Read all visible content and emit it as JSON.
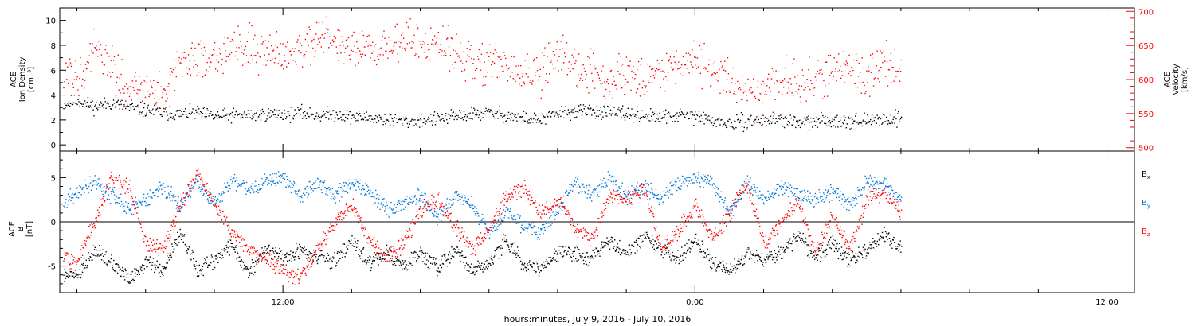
{
  "figure": {
    "xlabel": "hours:minutes, July  9, 2016 - July 10, 2016",
    "x_ticks": [
      "12:00",
      "0:00",
      "12:00"
    ]
  },
  "chart_data": [
    {
      "type": "scatter",
      "panel": "plasma",
      "left_label_lines": [
        "ACE",
        "Ion Density",
        "[cm⁻³]"
      ],
      "right_label_lines": [
        "ACE",
        "Velocity",
        "[km/s]"
      ],
      "x_range_hours": [
        -6.5,
        24.8
      ],
      "yleft_lim": [
        -0.5,
        11
      ],
      "yleft_ticks": [
        "0",
        "2",
        "4",
        "6",
        "8",
        "10"
      ],
      "yright_lim": [
        495,
        705
      ],
      "yright_ticks": [
        "500",
        "550",
        "600",
        "650",
        "700"
      ],
      "grid": false,
      "series": [
        {
          "axis": "left",
          "color": "#000000",
          "x": [
            -6.4,
            -6,
            -5.5,
            -5,
            -4.5,
            -4,
            -3.5,
            -3,
            -2.5,
            -2,
            -1.5,
            -1,
            -0.5,
            0,
            0.5,
            1,
            1.5,
            2,
            2.5,
            3,
            3.5,
            4,
            4.5,
            5,
            5.5,
            6,
            6.5,
            7,
            7.5,
            8,
            8.5,
            9,
            9.5,
            10,
            10.5,
            11,
            11.5,
            12,
            12.5,
            13,
            13.5,
            14,
            14.5,
            15,
            15.5,
            16,
            16.5,
            17,
            17.5,
            18
          ],
          "y": [
            3.3,
            3.6,
            3.1,
            3.4,
            3.0,
            2.8,
            2.6,
            2.5,
            2.6,
            2.3,
            2.4,
            2.4,
            2.5,
            2.5,
            2.6,
            2.4,
            2.5,
            2.3,
            2.2,
            2.1,
            1.9,
            2.0,
            2.1,
            2.3,
            2.5,
            2.6,
            2.4,
            2.2,
            2.0,
            2.6,
            2.7,
            2.8,
            2.6,
            2.5,
            2.4,
            2.2,
            2.4,
            2.3,
            2.0,
            1.7,
            1.9,
            2.0,
            2.1,
            1.8,
            1.9,
            2.0,
            2.0,
            1.9,
            2.1,
            2.2
          ]
        },
        {
          "axis": "right",
          "color": "#ff0000",
          "x": [
            -6.4,
            -6,
            -5.5,
            -5,
            -4.5,
            -4,
            -3.5,
            -3,
            -2.5,
            -2,
            -1.5,
            -1,
            -0.5,
            0,
            0.5,
            1,
            1.5,
            2,
            2.5,
            3,
            3.5,
            4,
            4.5,
            5,
            5.5,
            6,
            6.5,
            7,
            7.5,
            8,
            8.5,
            9,
            9.5,
            10,
            10.5,
            11,
            11.5,
            12,
            12.5,
            13,
            13.5,
            14,
            14.5,
            15,
            15.5,
            16,
            16.5,
            17,
            17.5,
            18
          ],
          "y": [
            600,
            610,
            640,
            620,
            590,
            585,
            580,
            625,
            630,
            640,
            645,
            650,
            645,
            640,
            650,
            660,
            655,
            645,
            640,
            650,
            660,
            655,
            650,
            640,
            630,
            625,
            615,
            606,
            610,
            640,
            620,
            610,
            600,
            610,
            600,
            615,
            625,
            630,
            610,
            596,
            590,
            580,
            600,
            595,
            600,
            610,
            620,
            605,
            630,
            615
          ]
        }
      ]
    },
    {
      "type": "scatter",
      "panel": "magnetic",
      "left_label_lines": [
        "ACE",
        "B",
        "[nT]"
      ],
      "x_range_hours": [
        -6.5,
        24.8
      ],
      "y_lim": [
        -8,
        8
      ],
      "y_ticks": [
        "-5",
        "0",
        "5"
      ],
      "zero_line": 0,
      "grid": false,
      "series": [
        {
          "name": "Bx",
          "color": "#000000",
          "x": [
            -6.4,
            -6,
            -5.5,
            -5,
            -4.5,
            -4,
            -3.5,
            -3,
            -2.5,
            -2,
            -1.5,
            -1,
            -0.5,
            0,
            0.5,
            1,
            1.5,
            2,
            2.5,
            3,
            3.5,
            4,
            4.5,
            5,
            5.5,
            6,
            6.5,
            7,
            7.5,
            8,
            8.5,
            9,
            9.5,
            10,
            10.5,
            11,
            11.5,
            12,
            12.5,
            13,
            13.5,
            14,
            14.5,
            15,
            15.5,
            16,
            16.5,
            17,
            17.5,
            18
          ],
          "y": [
            -6,
            -5.8,
            -3,
            -4.5,
            -6.5,
            -4.5,
            -5.5,
            -1,
            -5.5,
            -4.2,
            -2.5,
            -5.8,
            -3,
            -4,
            -3.2,
            -3.8,
            -4.5,
            -2,
            -4.6,
            -3.2,
            -5,
            -3.5,
            -5.2,
            -3,
            -5.4,
            -4.5,
            -2,
            -4.8,
            -5.3,
            -3.5,
            -3.5,
            -4,
            -2,
            -3.5,
            -1.5,
            -3,
            -4,
            -2,
            -4.5,
            -5.5,
            -3.5,
            -4,
            -3.5,
            -1.5,
            -4,
            -2.5,
            -4.5,
            -3,
            -1.5,
            -3
          ]
        },
        {
          "name": "By",
          "color": "#0078dc",
          "x": [
            -6.4,
            -6,
            -5.5,
            -5,
            -4.5,
            -4,
            -3.5,
            -3,
            -2.5,
            -2,
            -1.5,
            -1,
            -0.5,
            0,
            0.5,
            1,
            1.5,
            2,
            2.5,
            3,
            3.5,
            4,
            4.5,
            5,
            5.5,
            6,
            6.5,
            7,
            7.5,
            8,
            8.5,
            9,
            9.5,
            10,
            10.5,
            11,
            11.5,
            12,
            12.5,
            13,
            13.5,
            14,
            14.5,
            15,
            15.5,
            16,
            16.5,
            17,
            17.5,
            18
          ],
          "y": [
            2,
            3.5,
            4.5,
            3,
            1.5,
            2.5,
            4,
            2,
            4.5,
            2,
            5,
            3.5,
            4.5,
            5,
            3,
            4.5,
            3,
            4.5,
            3.5,
            1.5,
            2,
            3,
            0.5,
            3,
            2,
            -1.5,
            1.5,
            -0.5,
            -1,
            1.5,
            4.5,
            3,
            5,
            3,
            4,
            2.5,
            4.5,
            5,
            4.5,
            1,
            4.5,
            2.5,
            4,
            3,
            2.5,
            3.5,
            2,
            4.5,
            4.5,
            2.5
          ]
        },
        {
          "name": "Bz",
          "color": "#ff0000",
          "x": [
            -6.4,
            -6,
            -5.5,
            -5,
            -4.5,
            -4,
            -3.5,
            -3,
            -2.5,
            -2,
            -1.5,
            -1,
            -0.5,
            0,
            0.5,
            1,
            1.5,
            2,
            2.5,
            3,
            3.5,
            4,
            4.5,
            5,
            5.5,
            6,
            6.5,
            7,
            7.5,
            8,
            8.5,
            9,
            9.5,
            10,
            10.5,
            11,
            11.5,
            12,
            12.5,
            13,
            13.5,
            14,
            14.5,
            15,
            15.5,
            16,
            16.5,
            17,
            17.5,
            18
          ],
          "y": [
            -4,
            -4.5,
            0,
            5,
            4,
            -2.5,
            -3,
            2,
            5.5,
            2,
            -1,
            -3,
            -4,
            -5.5,
            -6.5,
            -3,
            0,
            2,
            -2,
            -4,
            -2.5,
            1.5,
            2.5,
            -0.5,
            -3,
            -1,
            3,
            4,
            1,
            2.5,
            -0.5,
            -2,
            3,
            2.5,
            4,
            -3,
            -1,
            2,
            -2,
            1,
            4.5,
            -2.5,
            0,
            2.5,
            -3.5,
            1,
            -3,
            2.5,
            3.5,
            1
          ]
        }
      ],
      "legend_placement": "right",
      "legend": [
        {
          "base": "B",
          "sub": "x",
          "color": "#000000"
        },
        {
          "base": "B",
          "sub": "y",
          "color": "#0078dc"
        },
        {
          "base": "B",
          "sub": "z",
          "color": "#ff0000"
        }
      ]
    }
  ]
}
